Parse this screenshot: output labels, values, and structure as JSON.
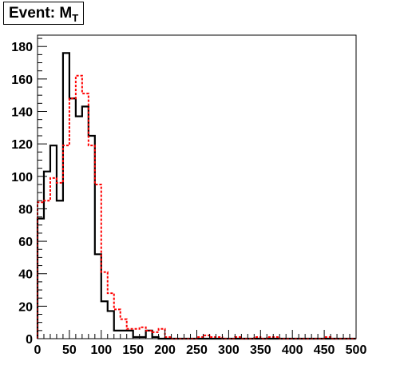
{
  "title": {
    "main": "Event: M",
    "sub": "T"
  },
  "chart_data": {
    "type": "histogram",
    "title": "Event: M_T",
    "xlim": [
      0,
      500
    ],
    "ylim": [
      0,
      187
    ],
    "xticks": [
      0,
      50,
      100,
      150,
      200,
      250,
      300,
      350,
      400,
      450,
      500
    ],
    "yticks": [
      0,
      20,
      40,
      60,
      80,
      100,
      120,
      140,
      160,
      180
    ],
    "bin_width": 10,
    "bin_edges_start": 0,
    "grid": false,
    "series": [
      {
        "style": "solid",
        "color": "#000000",
        "values": [
          74,
          103,
          119,
          85,
          176,
          148,
          137,
          143,
          125,
          52,
          23,
          17,
          5,
          5,
          5,
          1,
          1,
          5,
          1,
          0,
          0,
          0,
          0,
          0,
          0,
          0,
          0,
          0,
          0,
          0,
          0,
          0,
          0,
          0,
          0,
          0,
          0,
          0,
          0,
          0,
          0,
          0,
          0,
          0,
          0,
          0,
          0,
          0,
          0,
          0
        ]
      },
      {
        "style": "dashed",
        "color": "#ff0000",
        "values": [
          84,
          85,
          99,
          96,
          119,
          148,
          162,
          151,
          119,
          95,
          41,
          28,
          18,
          12,
          6,
          6,
          7,
          5,
          4,
          6,
          1,
          0,
          0,
          0,
          0,
          1,
          2,
          1,
          1,
          0,
          0,
          1,
          0,
          0,
          1,
          0,
          1,
          1,
          0,
          0,
          0,
          0,
          0,
          0,
          0,
          1,
          0,
          0,
          0,
          0
        ]
      }
    ]
  }
}
